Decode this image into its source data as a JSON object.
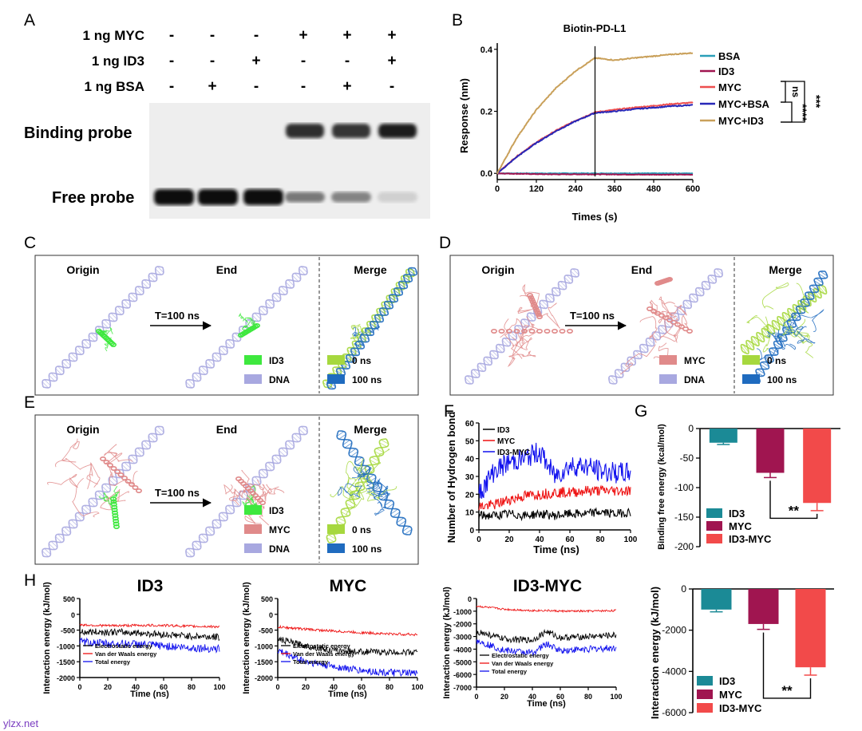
{
  "watermark": "ylzx.net",
  "panels": {
    "A": {
      "letter": "A",
      "row_labels": [
        "1 ng MYC",
        "1 ng ID3",
        "1 ng BSA"
      ],
      "lanes": [
        [
          "-",
          "-",
          "-"
        ],
        [
          "-",
          "-",
          "+"
        ],
        [
          "-",
          "+",
          "-"
        ],
        [
          "+",
          "-",
          "-"
        ],
        [
          "+",
          "-",
          "+"
        ],
        [
          "+",
          "+",
          "-"
        ]
      ],
      "band_labels": [
        "Binding probe",
        "Free probe"
      ],
      "band_intensity": {
        "binding": [
          0,
          0,
          0,
          0.9,
          0.85,
          1.0
        ],
        "free": [
          1.0,
          1.0,
          1.0,
          0.5,
          0.45,
          0.08
        ]
      }
    },
    "B": {
      "letter": "B",
      "title": "Biotin-PD-L1",
      "ylabel": "Response (nm)",
      "xlabel": "Times (s)",
      "ns_label": "ns",
      "sig_three": "***",
      "sig_four": "****"
    },
    "C": {
      "letter": "C",
      "col_labels": [
        "Origin",
        "End",
        "Merge"
      ],
      "arrow_label": "T=100 ns",
      "legend": [
        "ID3",
        "DNA",
        "0 ns",
        "100 ns"
      ]
    },
    "D": {
      "letter": "D",
      "col_labels": [
        "Origin",
        "End",
        "Merge"
      ],
      "arrow_label": "T=100 ns",
      "legend": [
        "MYC",
        "DNA",
        "0 ns",
        "100 ns"
      ]
    },
    "E": {
      "letter": "E",
      "col_labels": [
        "Origin",
        "End",
        "Merge"
      ],
      "arrow_label": "T=100 ns",
      "legend": [
        "ID3",
        "MYC",
        "DNA",
        "0 ns",
        "100 ns"
      ]
    },
    "F": {
      "letter": "F",
      "ylabel": "Number of Hydrogen bond",
      "xlabel": "Time (ns)"
    },
    "G": {
      "letter": "G",
      "ylabel": "Binding free energy (kcal/mol)",
      "sig": "**"
    },
    "H": {
      "letter": "H",
      "sig": "**"
    }
  },
  "colors": {
    "ID3": "#1b8a96",
    "MYC": "#a01550",
    "ID3-MYC": "#f24a4a",
    "bsa_line": "#2a9fb8",
    "id3_line": "#a01550",
    "myc_line": "#ee4e4e",
    "mycbsa_line": "#2727b8",
    "mycid3_line": "#c9a05a",
    "green": "#3ee83e",
    "red_struct": "#e08a8a",
    "dna": "#a8a8e0",
    "yellow": "#a6d83e",
    "blue_struct": "#1f6bbf"
  },
  "chart_data": [
    {
      "id": "B",
      "type": "line",
      "title": "Biotin-PD-L1",
      "xlabel": "Times (s)",
      "ylabel": "Response (nm)",
      "xlim": [
        0,
        600
      ],
      "ylim": [
        -0.02,
        0.42
      ],
      "xticks": [
        0,
        120,
        240,
        360,
        480,
        600
      ],
      "yticks": [
        0.0,
        0.2,
        0.4
      ],
      "series": [
        {
          "name": "BSA",
          "x": [
            0,
            150,
            300,
            450,
            600
          ],
          "y": [
            0.0,
            0.0,
            0.0,
            0.0,
            0.0
          ]
        },
        {
          "name": "ID3",
          "x": [
            0,
            150,
            300,
            450,
            600
          ],
          "y": [
            0.0,
            -0.003,
            -0.003,
            -0.004,
            -0.004
          ]
        },
        {
          "name": "MYC",
          "x": [
            0,
            60,
            120,
            180,
            240,
            300,
            360,
            420,
            480,
            540,
            600
          ],
          "y": [
            0.0,
            0.055,
            0.1,
            0.138,
            0.17,
            0.197,
            0.205,
            0.212,
            0.218,
            0.224,
            0.228
          ]
        },
        {
          "name": "MYC+BSA",
          "x": [
            0,
            60,
            120,
            180,
            240,
            300,
            360,
            420,
            480,
            540,
            600
          ],
          "y": [
            0.0,
            0.053,
            0.098,
            0.136,
            0.168,
            0.195,
            0.2,
            0.207,
            0.212,
            0.217,
            0.22
          ]
        },
        {
          "name": "MYC+ID3",
          "x": [
            0,
            60,
            120,
            180,
            240,
            300,
            360,
            420,
            480,
            540,
            600
          ],
          "y": [
            0.0,
            0.115,
            0.205,
            0.275,
            0.33,
            0.372,
            0.365,
            0.372,
            0.378,
            0.384,
            0.388
          ]
        }
      ]
    },
    {
      "id": "F",
      "type": "line",
      "xlabel": "Time (ns)",
      "ylabel": "Number of Hydrogen bond",
      "xlim": [
        0,
        100
      ],
      "ylim": [
        0,
        60
      ],
      "xticks": [
        0,
        20,
        40,
        60,
        80,
        100
      ],
      "yticks": [
        0,
        10,
        20,
        30,
        40,
        50,
        60
      ],
      "series": [
        {
          "name": "ID3",
          "x": [
            0,
            10,
            20,
            30,
            40,
            50,
            60,
            70,
            80,
            90,
            100
          ],
          "y": [
            8,
            8,
            9,
            8,
            9,
            8,
            9,
            9,
            10,
            9,
            10
          ]
        },
        {
          "name": "MYC",
          "x": [
            0,
            10,
            20,
            30,
            40,
            50,
            60,
            70,
            80,
            90,
            100
          ],
          "y": [
            13,
            14,
            17,
            19,
            20,
            21,
            21,
            22,
            22,
            22,
            22
          ]
        },
        {
          "name": "ID3-MYC",
          "x": [
            0,
            10,
            20,
            30,
            40,
            50,
            60,
            70,
            80,
            90,
            100
          ],
          "y": [
            20,
            33,
            38,
            40,
            44,
            30,
            36,
            36,
            33,
            32,
            32
          ]
        }
      ]
    },
    {
      "id": "G",
      "type": "bar",
      "ylabel": "Binding free energy (kcal/mol)",
      "categories": [
        "ID3",
        "MYC",
        "ID3-MYC"
      ],
      "values": [
        -24,
        -75,
        -126
      ],
      "errors": [
        3,
        8,
        13
      ],
      "ylim": [
        -200,
        0
      ],
      "yticks": [
        0,
        -50,
        -100,
        -150,
        -200
      ]
    },
    {
      "id": "H1",
      "type": "line",
      "title": "ID3",
      "xlabel": "Time (ns)",
      "ylabel": "Interaction energy (kJ/mol)",
      "xlim": [
        0,
        100
      ],
      "ylim": [
        -2000,
        500
      ],
      "xticks": [
        0,
        20,
        40,
        60,
        80,
        100
      ],
      "yticks": [
        500,
        0,
        -500,
        -1000,
        -1500,
        -2000
      ],
      "legend": [
        "Electrostatic energy",
        "Van der Waals energy",
        "Total energy"
      ],
      "series": [
        {
          "name": "Electrostatic energy",
          "x": [
            0,
            20,
            40,
            60,
            80,
            100
          ],
          "y": [
            -560,
            -560,
            -580,
            -640,
            -690,
            -720
          ]
        },
        {
          "name": "Van der Waals energy",
          "x": [
            0,
            20,
            40,
            60,
            80,
            100
          ],
          "y": [
            -330,
            -360,
            -350,
            -350,
            -380,
            -390
          ]
        },
        {
          "name": "Total energy",
          "x": [
            0,
            20,
            40,
            60,
            80,
            100
          ],
          "y": [
            -880,
            -930,
            -940,
            -1000,
            -1060,
            -1090
          ]
        }
      ]
    },
    {
      "id": "H2",
      "type": "line",
      "title": "MYC",
      "xlabel": "Time (ns)",
      "ylabel": "Interaction energy (kJ/mol)",
      "xlim": [
        0,
        100
      ],
      "ylim": [
        -2000,
        500
      ],
      "xticks": [
        0,
        20,
        40,
        60,
        80,
        100
      ],
      "yticks": [
        500,
        0,
        -500,
        -1000,
        -1500,
        -2000
      ],
      "legend": [
        "Electrostatic energy",
        "Van der Waals energy",
        "Total energy"
      ],
      "series": [
        {
          "name": "Electrostatic energy",
          "x": [
            0,
            20,
            40,
            60,
            80,
            100
          ],
          "y": [
            -780,
            -1000,
            -1150,
            -1180,
            -1200,
            -1200
          ]
        },
        {
          "name": "Van der Waals energy",
          "x": [
            0,
            20,
            40,
            60,
            80,
            100
          ],
          "y": [
            -400,
            -470,
            -530,
            -580,
            -620,
            -640
          ]
        },
        {
          "name": "Total energy",
          "x": [
            0,
            20,
            40,
            60,
            80,
            100
          ],
          "y": [
            -1150,
            -1500,
            -1650,
            -1780,
            -1850,
            -1870
          ]
        }
      ]
    },
    {
      "id": "H3",
      "type": "line",
      "title": "ID3-MYC",
      "xlabel": "Time (ns)",
      "ylabel": "Interaction energy (kJ/mol)",
      "xlim": [
        0,
        100
      ],
      "ylim": [
        -7000,
        0
      ],
      "xticks": [
        0,
        20,
        40,
        60,
        80,
        100
      ],
      "yticks": [
        0,
        -1000,
        -2000,
        -3000,
        -4000,
        -5000,
        -6000,
        -7000
      ],
      "legend": [
        "Electrostatic energy",
        "Van der Waals energy",
        "Total energy"
      ],
      "series": [
        {
          "name": "Electrostatic energy",
          "x": [
            0,
            20,
            40,
            50,
            60,
            80,
            100
          ],
          "y": [
            -2600,
            -3200,
            -3300,
            -2600,
            -3100,
            -3000,
            -2900
          ]
        },
        {
          "name": "Van der Waals energy",
          "x": [
            0,
            20,
            40,
            50,
            60,
            80,
            100
          ],
          "y": [
            -600,
            -850,
            -950,
            -950,
            -1000,
            -1000,
            -950
          ]
        },
        {
          "name": "Total energy",
          "x": [
            0,
            20,
            40,
            50,
            60,
            80,
            100
          ],
          "y": [
            -3300,
            -4100,
            -4300,
            -3600,
            -4100,
            -4000,
            -3900
          ]
        }
      ]
    },
    {
      "id": "H4",
      "type": "bar",
      "ylabel": "Interaction energy (kJ/mol)",
      "categories": [
        "ID3",
        "MYC",
        "ID3-MYC"
      ],
      "values": [
        -1000,
        -1700,
        -3800
      ],
      "errors": [
        110,
        260,
        380
      ],
      "ylim": [
        -6000,
        0
      ],
      "yticks": [
        0,
        -2000,
        -4000,
        -6000
      ]
    }
  ]
}
